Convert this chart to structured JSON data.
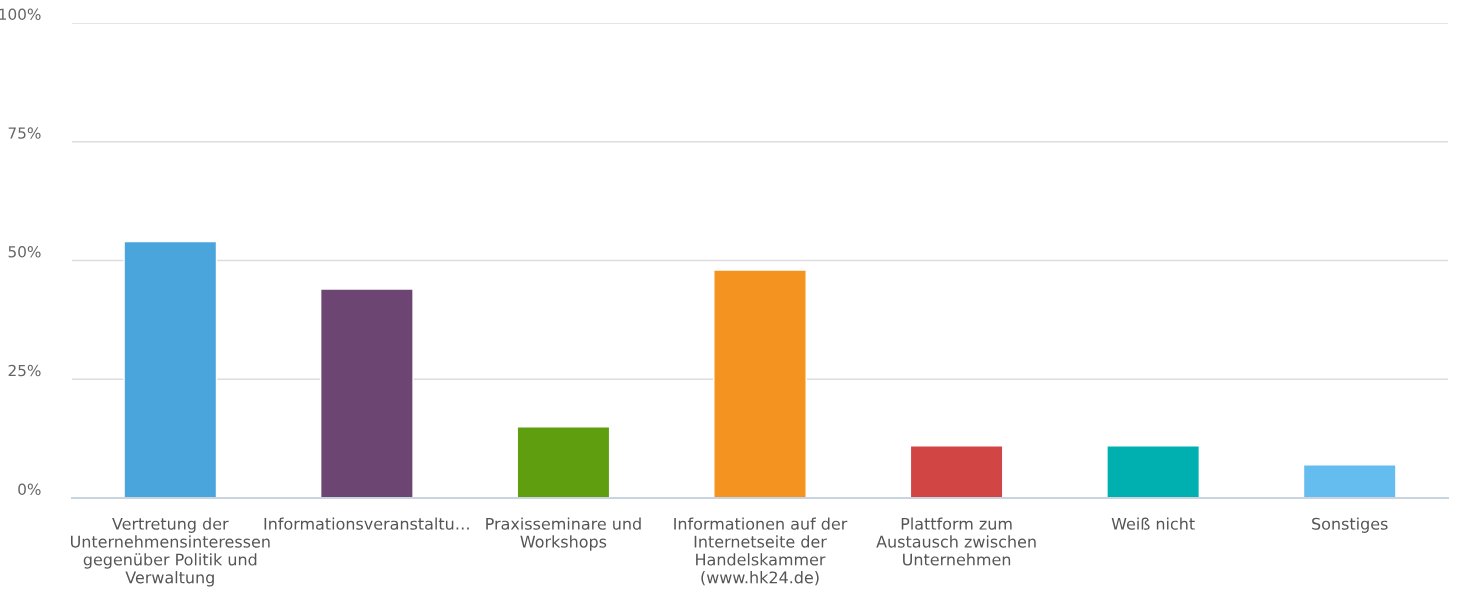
{
  "chart_data": {
    "type": "bar",
    "categories": [
      "Vertretung der Unternehmensinteressen gegenüber Politik und Verwaltung",
      "Informationsveranstaltu…",
      "Praxisseminare und Workshops",
      "Informationen auf der Internetseite der Handelskammer (www.hk24.de)",
      "Plattform zum Austausch zwischen Unternehmen",
      "Weiß nicht",
      "Sonstiges"
    ],
    "values": [
      54,
      44,
      15,
      48,
      11,
      11,
      7
    ],
    "colors": [
      "#4aa5dc",
      "#6c4572",
      "#5f9e0f",
      "#f4931f",
      "#d24545",
      "#00b0b0",
      "#65bcee"
    ],
    "ylim": [
      0,
      100
    ],
    "yticks": [
      {
        "value": 0,
        "label": "0%"
      },
      {
        "value": 25,
        "label": "25%"
      },
      {
        "value": 50,
        "label": "50%"
      },
      {
        "value": 75,
        "label": "75%"
      },
      {
        "value": 100,
        "label": "100%"
      }
    ],
    "grid": "y"
  }
}
